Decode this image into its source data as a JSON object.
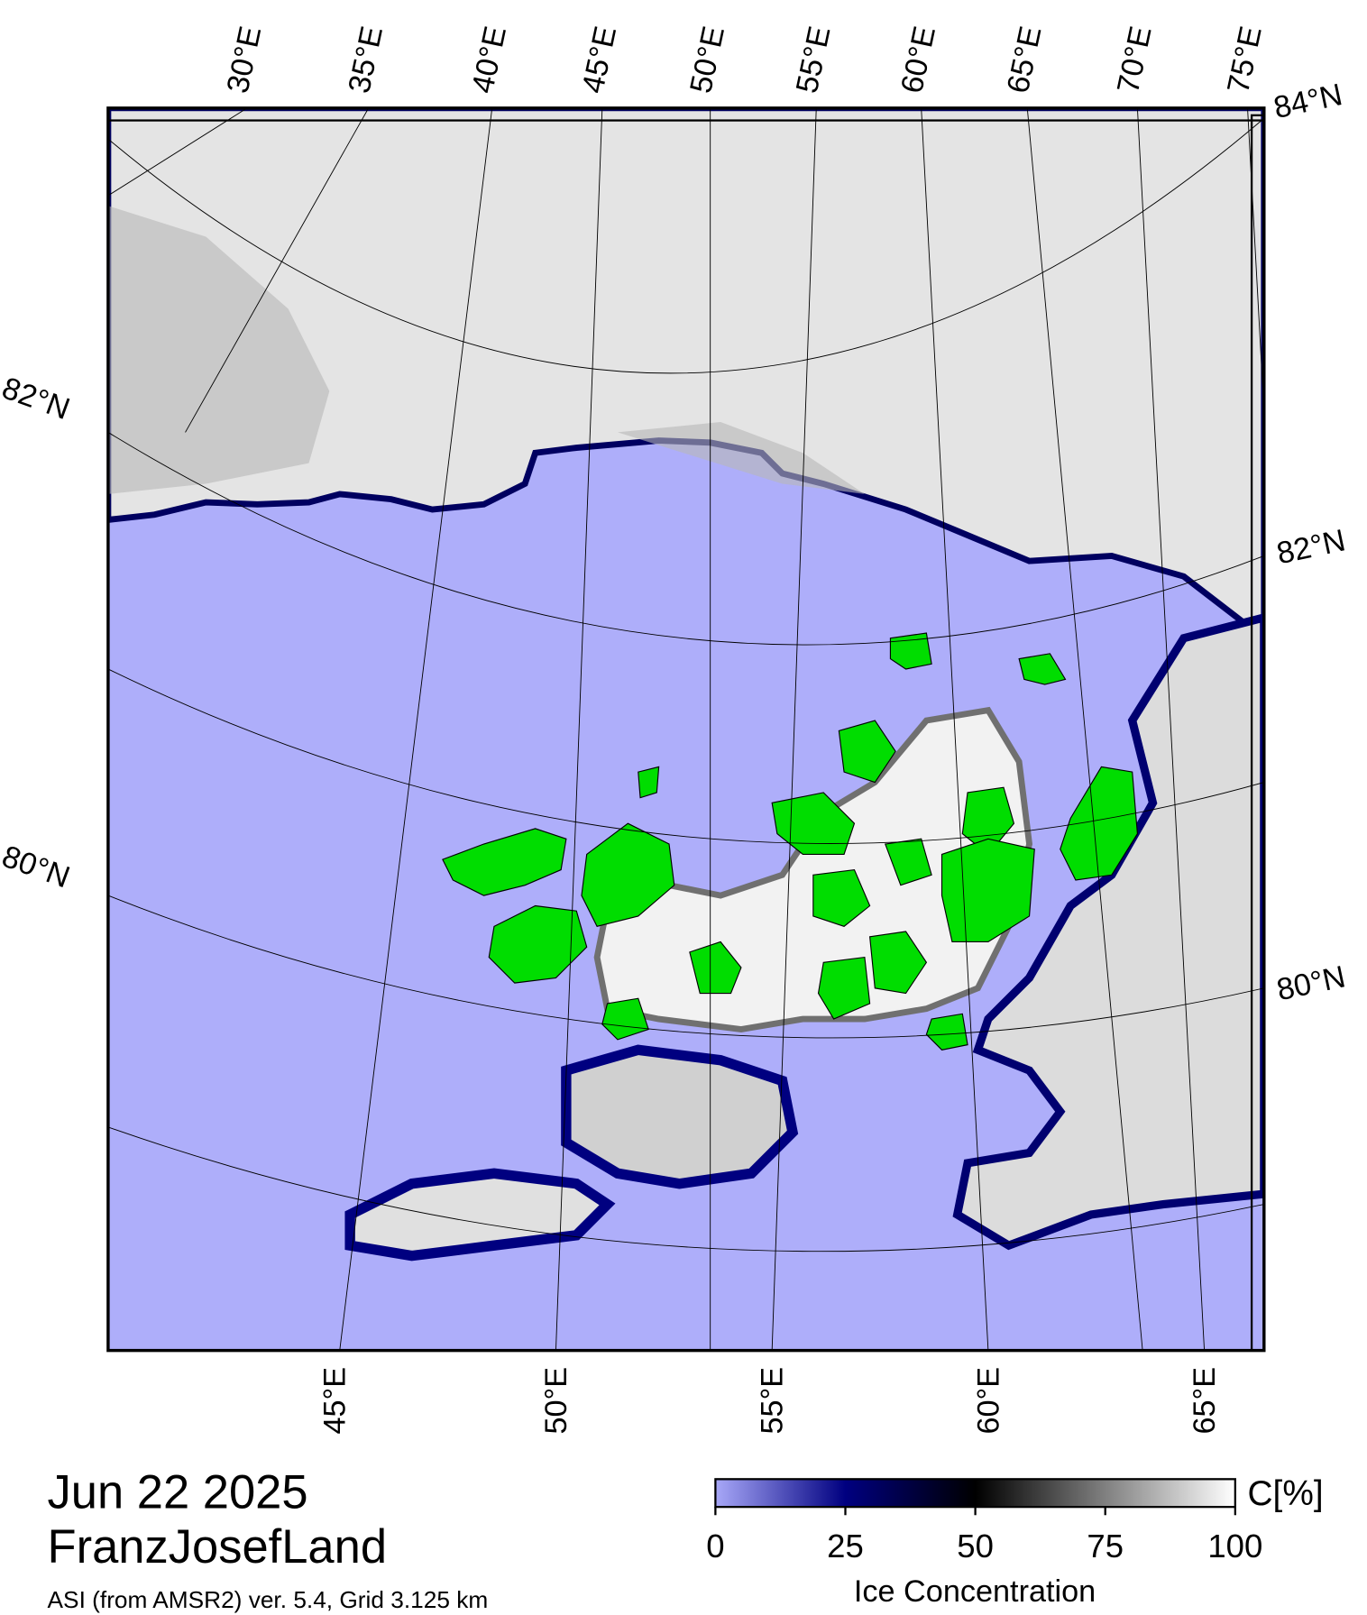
{
  "date": "Jun 22 2025",
  "region": "FranzJosefLand",
  "source": "ASI (from AMSR2) ver. 5.4,  Grid 3.125 km",
  "map": {
    "top_lon_labels": [
      "30°E",
      "35°E",
      "40°E",
      "45°E",
      "50°E",
      "55°E",
      "60°E",
      "65°E",
      "70°E",
      "75°E"
    ],
    "bottom_lon_labels": [
      "45°E",
      "50°E",
      "55°E",
      "60°E",
      "65°E"
    ],
    "left_lat_labels": [
      "82°N",
      "80°N"
    ],
    "right_lat_labels": [
      "84°N",
      "82°N",
      "80°N"
    ]
  },
  "colorbar": {
    "label": "Ice Concentration",
    "unit": "C[%]",
    "range": [
      0,
      100
    ],
    "ticks": [
      0,
      25,
      50,
      75,
      100
    ]
  }
}
